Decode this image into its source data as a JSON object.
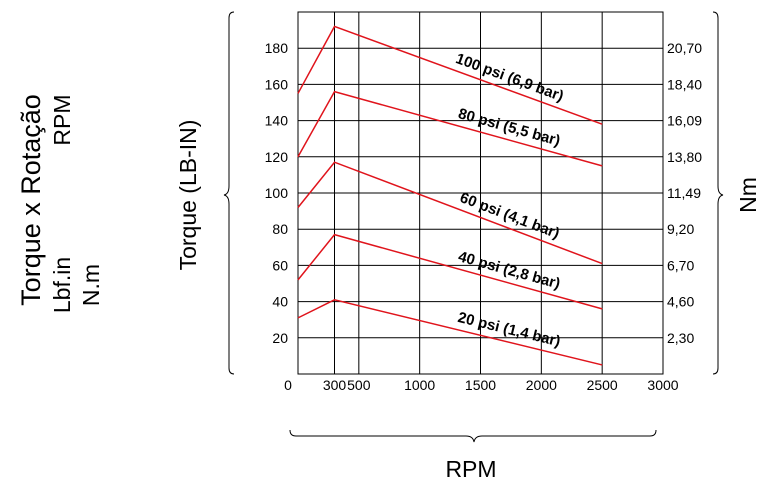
{
  "side_title": {
    "line1": "Torque x Rotação",
    "line2_left": "Lbf.in",
    "line2_right": "RPM",
    "line3": "N.m"
  },
  "chart_data": {
    "type": "line",
    "ylabel": "Torque (LB-IN)",
    "xlabel": "RPM",
    "y2label": "Nm",
    "xlim": [
      0,
      3000
    ],
    "ylim": [
      0,
      200
    ],
    "x_ticks": [
      0,
      300,
      500,
      1000,
      1500,
      2000,
      2500,
      3000
    ],
    "x_tick_labels": [
      "0",
      "300",
      "500",
      "1000",
      "1500",
      "2000",
      "2500",
      "3000"
    ],
    "y_ticks": [
      20,
      40,
      60,
      80,
      100,
      120,
      140,
      160,
      180
    ],
    "y_tick_labels": [
      "20",
      "40",
      "60",
      "80",
      "100",
      "120",
      "140",
      "160",
      "180"
    ],
    "y2_ticks": [
      20,
      40,
      60,
      80,
      100,
      120,
      140,
      160,
      180
    ],
    "y2_tick_labels": [
      "2,30",
      "4,60",
      "6,70",
      "9,20",
      "11,49",
      "13,80",
      "16,09",
      "18,40",
      "20,70"
    ],
    "grid": true,
    "line_color": "#e0141c",
    "series": [
      {
        "name": "100 psi (6,9 bar)",
        "x": [
          0,
          300,
          2500
        ],
        "y": [
          155,
          192,
          138
        ]
      },
      {
        "name": "80 psi (5,5 bar)",
        "x": [
          0,
          300,
          2500
        ],
        "y": [
          120,
          156,
          115
        ]
      },
      {
        "name": "60 psi (4,1 bar)",
        "x": [
          0,
          300,
          2500
        ],
        "y": [
          92,
          117,
          61
        ]
      },
      {
        "name": "40 psi (2,8 bar)",
        "x": [
          0,
          300,
          2500
        ],
        "y": [
          52,
          77,
          36
        ]
      },
      {
        "name": "20 psi (1,4 bar)",
        "x": [
          0,
          300,
          2500
        ],
        "y": [
          31,
          41,
          5
        ]
      }
    ]
  }
}
